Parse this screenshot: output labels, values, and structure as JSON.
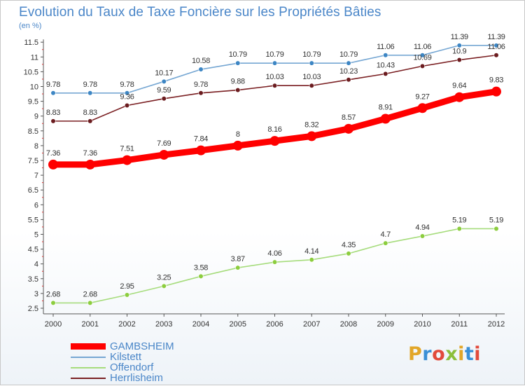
{
  "header": {
    "title": "Evolution du Taux de Taxe Foncière sur les Propriétés Bâties",
    "unit": "(en %)"
  },
  "logo": {
    "letters": [
      "P",
      "r",
      "o",
      "x",
      "i",
      "t",
      "i"
    ],
    "colors": [
      "#e2a628",
      "#3a8fd6",
      "#e24a3b",
      "#8cbf3a",
      "#e2a628",
      "#3a8fd6",
      "#e24a3b"
    ]
  },
  "chart_data": {
    "type": "line",
    "title": "Evolution du Taux de Taxe Foncière sur les Propriétés Bâties",
    "ylabel": "(en %)",
    "xlabel": "",
    "x": [
      "2000",
      "2001",
      "2002",
      "2003",
      "2004",
      "2005",
      "2006",
      "2007",
      "2008",
      "2009",
      "2010",
      "2011",
      "2012"
    ],
    "ylim": [
      2.5,
      11.5
    ],
    "yticks": [
      "2.5",
      "3",
      "3.5",
      "4",
      "4.5",
      "5",
      "5.5",
      "6",
      "6.5",
      "7",
      "7.5",
      "8",
      "8.5",
      "9",
      "9.5",
      "10",
      "10.5",
      "11",
      "11.5"
    ],
    "grid": false,
    "legend_position": "bottom-left",
    "series": [
      {
        "name": "GAMBSHEIM",
        "color": "#ff0000",
        "emphasis": true,
        "values": [
          7.36,
          7.36,
          7.51,
          7.69,
          7.84,
          8,
          8.16,
          8.32,
          8.57,
          8.91,
          9.27,
          9.64,
          9.83
        ],
        "labels": [
          "7.36",
          "7.36",
          "7.51",
          "7.69",
          "7.84",
          "8",
          "8.16",
          "8.32",
          "8.57",
          "8.91",
          "9.27",
          "9.64",
          "9.83"
        ]
      },
      {
        "name": "Kilstett",
        "color": "#76a7d3",
        "marker": "#3d86c4",
        "values": [
          9.78,
          9.78,
          9.78,
          10.17,
          10.58,
          10.79,
          10.79,
          10.79,
          10.79,
          11.06,
          11.06,
          11.39,
          11.39
        ],
        "labels": [
          "9.78",
          "9.78",
          "9.78",
          "10.17",
          "10.58",
          "10.79",
          "10.79",
          "10.79",
          "10.79",
          "11.06",
          "11.06",
          "11.39",
          "11.39"
        ]
      },
      {
        "name": "Offendorf",
        "color": "#a6dc7c",
        "marker": "#8ccd3e",
        "values": [
          2.68,
          2.68,
          2.95,
          3.25,
          3.58,
          3.87,
          4.06,
          4.14,
          4.35,
          4.7,
          4.94,
          5.19,
          5.19
        ],
        "labels": [
          "2.68",
          "2.68",
          "2.95",
          "3.25",
          "3.58",
          "3.87",
          "4.06",
          "4.14",
          "4.35",
          "4.7",
          "4.94",
          "5.19",
          "5.19"
        ]
      },
      {
        "name": "Herrlisheim",
        "color": "#7a1f22",
        "marker": "#6b1c1f",
        "values": [
          8.83,
          8.83,
          9.36,
          9.59,
          9.78,
          9.88,
          10.03,
          10.03,
          10.23,
          10.43,
          10.69,
          10.9,
          11.06
        ],
        "labels": [
          "8.83",
          "8.83",
          "9.36",
          "9.59",
          "9.78",
          "9.88",
          "10.03",
          "10.03",
          "10.23",
          "10.43",
          "10.69",
          "10.9",
          "11.06"
        ]
      }
    ]
  }
}
